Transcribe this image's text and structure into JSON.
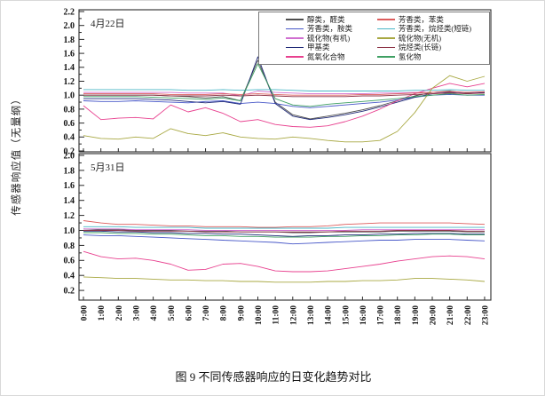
{
  "figure": {
    "caption": "图 9 不同传感器响应的日变化趋势对比",
    "y_axis_label": "传感器响应值（无量纲）"
  },
  "chart_data": [
    {
      "type": "line",
      "title": "4月22日",
      "xlabel": "",
      "ylabel": "传感器响应值（无量纲）",
      "ylim": [
        0.2,
        2.2
      ],
      "ytick_step": 0.2,
      "grid": false,
      "legend_position": "upper right",
      "x_labels": [
        "0:00",
        "1:00",
        "2:00",
        "3:00",
        "4:00",
        "5:00",
        "6:00",
        "7:00",
        "8:00",
        "9:00",
        "10:00",
        "11:00",
        "12:00",
        "13:00",
        "14:00",
        "15:00",
        "16:00",
        "17:00",
        "18:00",
        "19:00",
        "20:00",
        "21:00",
        "22:00",
        "23:00"
      ],
      "series": [
        {
          "name": "醇类，醛类",
          "color": "#4d4d4d",
          "values": [
            1.0,
            1.0,
            1.0,
            1.0,
            1.0,
            0.99,
            0.98,
            0.96,
            0.98,
            0.92,
            1.5,
            0.9,
            0.72,
            0.66,
            0.7,
            0.74,
            0.79,
            0.85,
            0.92,
            0.99,
            1.04,
            1.06,
            1.03,
            1.03
          ]
        },
        {
          "name": "芳香类，胺类",
          "color": "#4757c8",
          "values": [
            0.92,
            0.91,
            0.91,
            0.92,
            0.91,
            0.9,
            0.89,
            0.91,
            0.92,
            0.88,
            0.9,
            0.88,
            0.84,
            0.82,
            0.84,
            0.86,
            0.88,
            0.9,
            0.93,
            0.97,
            1.0,
            1.01,
            1.0,
            1.0
          ]
        },
        {
          "name": "硫化物(有机)",
          "color": "#d06fd0",
          "values": [
            1.04,
            1.04,
            1.04,
            1.04,
            1.04,
            1.04,
            1.03,
            1.03,
            1.03,
            0.99,
            1.06,
            1.04,
            1.03,
            1.02,
            1.02,
            1.02,
            1.02,
            1.03,
            1.03,
            1.04,
            1.04,
            1.05,
            1.04,
            1.05
          ]
        },
        {
          "name": "甲基类",
          "color": "#202a78",
          "values": [
            0.95,
            0.95,
            0.95,
            0.95,
            0.94,
            0.93,
            0.91,
            0.89,
            0.91,
            0.87,
            1.55,
            0.88,
            0.7,
            0.65,
            0.68,
            0.72,
            0.77,
            0.83,
            0.9,
            0.97,
            1.02,
            1.04,
            1.02,
            1.04
          ]
        },
        {
          "name": "氮氧化合物",
          "color": "#e8418f",
          "values": [
            0.85,
            0.65,
            0.67,
            0.68,
            0.66,
            0.86,
            0.76,
            0.82,
            0.74,
            0.62,
            0.65,
            0.58,
            0.55,
            0.54,
            0.56,
            0.62,
            0.7,
            0.8,
            0.92,
            1.02,
            1.1,
            1.17,
            1.12,
            1.17
          ]
        },
        {
          "name": "芳香类，苯类",
          "color": "#dc5c5c",
          "values": [
            1.02,
            1.02,
            1.02,
            1.02,
            1.02,
            1.01,
            1.01,
            1.01,
            1.02,
            1.01,
            1.02,
            1.01,
            1.0,
            1.0,
            1.0,
            1.0,
            1.01,
            1.01,
            1.02,
            1.03,
            1.04,
            1.05,
            1.04,
            1.05
          ]
        },
        {
          "name": "芳香类，烷烃类(短链)",
          "color": "#49b6c6",
          "values": [
            1.08,
            1.08,
            1.08,
            1.08,
            1.08,
            1.08,
            1.07,
            1.07,
            1.08,
            1.07,
            1.08,
            1.08,
            1.07,
            1.06,
            1.06,
            1.06,
            1.06,
            1.06,
            1.06,
            1.07,
            1.07,
            1.08,
            1.07,
            1.07
          ]
        },
        {
          "name": "硫化物(无机)",
          "color": "#a8a842",
          "values": [
            0.42,
            0.38,
            0.37,
            0.4,
            0.38,
            0.52,
            0.45,
            0.42,
            0.46,
            0.4,
            0.38,
            0.37,
            0.4,
            0.38,
            0.35,
            0.33,
            0.33,
            0.35,
            0.48,
            0.75,
            1.1,
            1.28,
            1.2,
            1.27
          ]
        },
        {
          "name": "烷烃类(长链)",
          "color": "#8e3448",
          "values": [
            1.0,
            1.0,
            1.0,
            1.0,
            1.0,
            0.99,
            0.99,
            0.99,
            1.0,
            0.99,
            1.0,
            0.99,
            0.98,
            0.98,
            0.98,
            0.98,
            0.99,
            0.99,
            1.0,
            1.01,
            1.02,
            1.03,
            1.02,
            1.03
          ]
        },
        {
          "name": "氢化物",
          "color": "#3fa063",
          "values": [
            0.98,
            0.98,
            0.98,
            0.98,
            0.97,
            0.96,
            0.95,
            0.94,
            0.96,
            0.92,
            1.45,
            0.95,
            0.86,
            0.84,
            0.87,
            0.89,
            0.91,
            0.93,
            0.95,
            0.98,
            1.0,
            1.02,
            1.0,
            1.01
          ]
        }
      ]
    },
    {
      "type": "line",
      "title": "5月31日",
      "xlabel": "",
      "ylabel": "传感器响应值（无量纲）",
      "ylim": [
        0.2,
        2.0
      ],
      "ytick_step": 0.2,
      "grid": false,
      "x_labels": [
        "0:00",
        "1:00",
        "2:00",
        "3:00",
        "4:00",
        "5:00",
        "6:00",
        "7:00",
        "8:00",
        "9:00",
        "10:00",
        "11:00",
        "12:00",
        "13:00",
        "14:00",
        "15:00",
        "16:00",
        "17:00",
        "18:00",
        "19:00",
        "20:00",
        "21:00",
        "22:00",
        "23:00"
      ],
      "series": [
        {
          "name": "醇类，醛类",
          "color": "#4d4d4d",
          "values": [
            1.02,
            1.01,
            1.01,
            1.0,
            1.0,
            1.0,
            0.99,
            0.99,
            0.99,
            0.98,
            0.98,
            0.98,
            0.97,
            0.97,
            0.98,
            0.98,
            0.98,
            0.98,
            0.99,
            0.99,
            0.99,
            0.99,
            0.98,
            0.98
          ]
        },
        {
          "name": "芳香类，胺类",
          "color": "#4757c8",
          "values": [
            0.94,
            0.93,
            0.93,
            0.92,
            0.91,
            0.9,
            0.89,
            0.88,
            0.87,
            0.86,
            0.85,
            0.84,
            0.82,
            0.83,
            0.84,
            0.85,
            0.86,
            0.87,
            0.87,
            0.88,
            0.88,
            0.88,
            0.87,
            0.86
          ]
        },
        {
          "name": "硫化物(有机)",
          "color": "#d06fd0",
          "values": [
            1.02,
            1.02,
            1.02,
            1.01,
            1.01,
            1.01,
            1.01,
            1.0,
            1.0,
            1.0,
            1.0,
            1.0,
            1.0,
            1.0,
            1.0,
            1.0,
            1.01,
            1.01,
            1.01,
            1.01,
            1.01,
            1.01,
            1.01,
            1.01
          ]
        },
        {
          "name": "甲基类",
          "color": "#202a78",
          "values": [
            0.99,
            0.99,
            0.98,
            0.98,
            0.97,
            0.97,
            0.96,
            0.96,
            0.95,
            0.95,
            0.94,
            0.93,
            0.92,
            0.93,
            0.93,
            0.94,
            0.94,
            0.95,
            0.95,
            0.96,
            0.96,
            0.96,
            0.95,
            0.95
          ]
        },
        {
          "name": "氮氧化合物",
          "color": "#e8418f",
          "values": [
            0.72,
            0.65,
            0.62,
            0.63,
            0.6,
            0.55,
            0.47,
            0.48,
            0.55,
            0.56,
            0.52,
            0.46,
            0.45,
            0.45,
            0.46,
            0.49,
            0.52,
            0.55,
            0.59,
            0.62,
            0.65,
            0.66,
            0.65,
            0.62
          ]
        },
        {
          "name": "芳香类，苯类",
          "color": "#dc5c5c",
          "values": [
            1.13,
            1.1,
            1.08,
            1.08,
            1.07,
            1.06,
            1.06,
            1.05,
            1.05,
            1.05,
            1.04,
            1.04,
            1.05,
            1.05,
            1.06,
            1.08,
            1.09,
            1.1,
            1.1,
            1.1,
            1.1,
            1.1,
            1.09,
            1.08
          ]
        },
        {
          "name": "芳香类，烷烃类(短链)",
          "color": "#49b6c6",
          "values": [
            1.05,
            1.05,
            1.05,
            1.04,
            1.04,
            1.04,
            1.04,
            1.03,
            1.03,
            1.03,
            1.03,
            1.03,
            1.03,
            1.03,
            1.03,
            1.04,
            1.04,
            1.04,
            1.04,
            1.04,
            1.04,
            1.04,
            1.04,
            1.04
          ]
        },
        {
          "name": "硫化物(无机)",
          "color": "#a8a842",
          "values": [
            0.38,
            0.37,
            0.36,
            0.36,
            0.35,
            0.34,
            0.34,
            0.33,
            0.33,
            0.32,
            0.32,
            0.31,
            0.31,
            0.31,
            0.32,
            0.32,
            0.33,
            0.33,
            0.34,
            0.36,
            0.36,
            0.35,
            0.34,
            0.32
          ]
        },
        {
          "name": "烷烃类(长链)",
          "color": "#8e3448",
          "values": [
            1.0,
            1.0,
            1.0,
            0.99,
            0.99,
            0.99,
            0.99,
            0.98,
            0.98,
            0.98,
            0.98,
            0.98,
            0.98,
            0.98,
            0.98,
            0.99,
            0.99,
            0.99,
            1.0,
            1.0,
            1.0,
            1.0,
            0.99,
            0.99
          ]
        },
        {
          "name": "氢化物",
          "color": "#3fa063",
          "values": [
            0.97,
            0.97,
            0.96,
            0.96,
            0.95,
            0.95,
            0.94,
            0.93,
            0.93,
            0.92,
            0.92,
            0.91,
            0.91,
            0.91,
            0.92,
            0.92,
            0.93,
            0.93,
            0.94,
            0.94,
            0.95,
            0.95,
            0.94,
            0.94
          ]
        }
      ]
    }
  ]
}
